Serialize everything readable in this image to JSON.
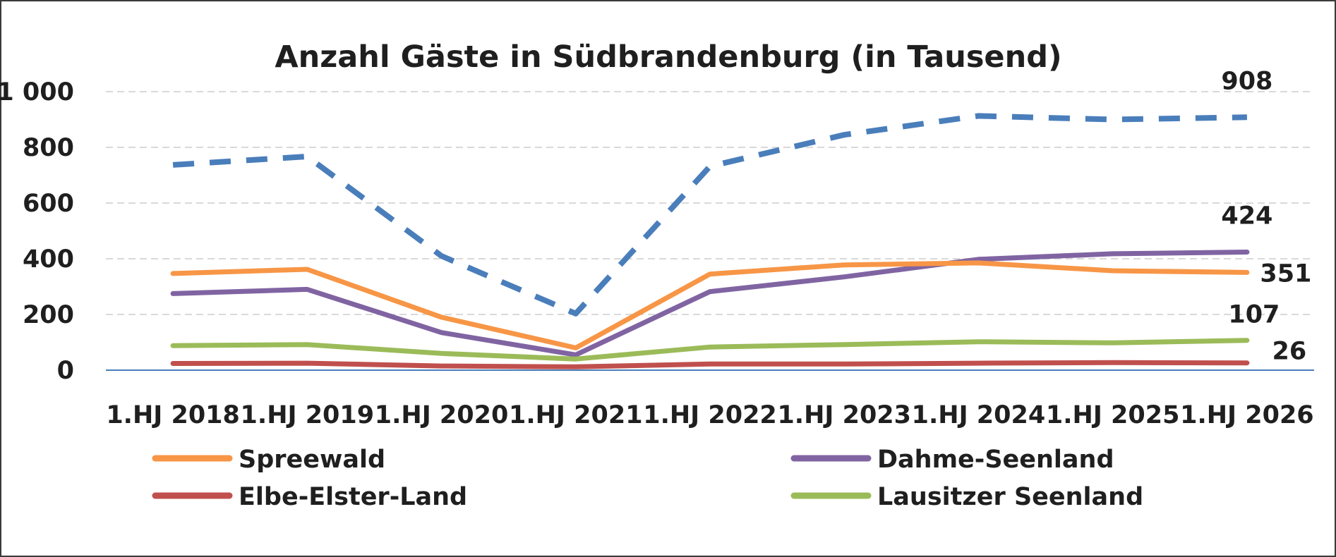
{
  "chart_data": {
    "type": "line",
    "title": "Anzahl Gäste in Südbrandenburg (in Tausend)",
    "xlabel": "",
    "ylabel": "",
    "categories": [
      "1.HJ 2018",
      "1.HJ 2019",
      "1.HJ 2020",
      "1.HJ 2021",
      "1.HJ 2022",
      "1.HJ 2023",
      "1.HJ 2024",
      "1.HJ 2025",
      "1.HJ 2026"
    ],
    "ylim": [
      0,
      1000
    ],
    "yticks": [
      0,
      200,
      400,
      600,
      800,
      1000
    ],
    "ytick_labels": [
      "0",
      "200",
      "400",
      "600",
      "800",
      "1 000"
    ],
    "grid": "horizontal dashed",
    "legend_position": "bottom",
    "series": [
      {
        "name": "",
        "color": "#4a7ebb",
        "dashed": true,
        "values": [
          737,
          767,
          410,
          203,
          732,
          845,
          913,
          900,
          908
        ],
        "end_label": "908",
        "in_legend": false
      },
      {
        "name": "Dahme-Seenland",
        "color": "#8064a2",
        "dashed": false,
        "values": [
          275,
          290,
          135,
          55,
          282,
          335,
          398,
          418,
          424
        ],
        "end_label": "424",
        "in_legend": true
      },
      {
        "name": "Spreewald",
        "color": "#f79646",
        "dashed": false,
        "values": [
          347,
          362,
          190,
          80,
          345,
          378,
          385,
          357,
          351
        ],
        "end_label": "351",
        "in_legend": true
      },
      {
        "name": "Lausitzer Seenland",
        "color": "#9bbb59",
        "dashed": false,
        "values": [
          88,
          92,
          60,
          40,
          83,
          92,
          102,
          98,
          107
        ],
        "end_label": "107",
        "in_legend": true
      },
      {
        "name": "Elbe-Elster-Land",
        "color": "#c0504d",
        "dashed": false,
        "values": [
          24,
          25,
          15,
          12,
          22,
          22,
          25,
          27,
          26
        ],
        "end_label": "26",
        "in_legend": true
      }
    ],
    "legend": [
      {
        "name": "Spreewald",
        "color": "#f79646"
      },
      {
        "name": "Dahme-Seenland",
        "color": "#8064a2"
      },
      {
        "name": "Elbe-Elster-Land",
        "color": "#c0504d"
      },
      {
        "name": "Lausitzer Seenland",
        "color": "#9bbb59"
      }
    ]
  }
}
